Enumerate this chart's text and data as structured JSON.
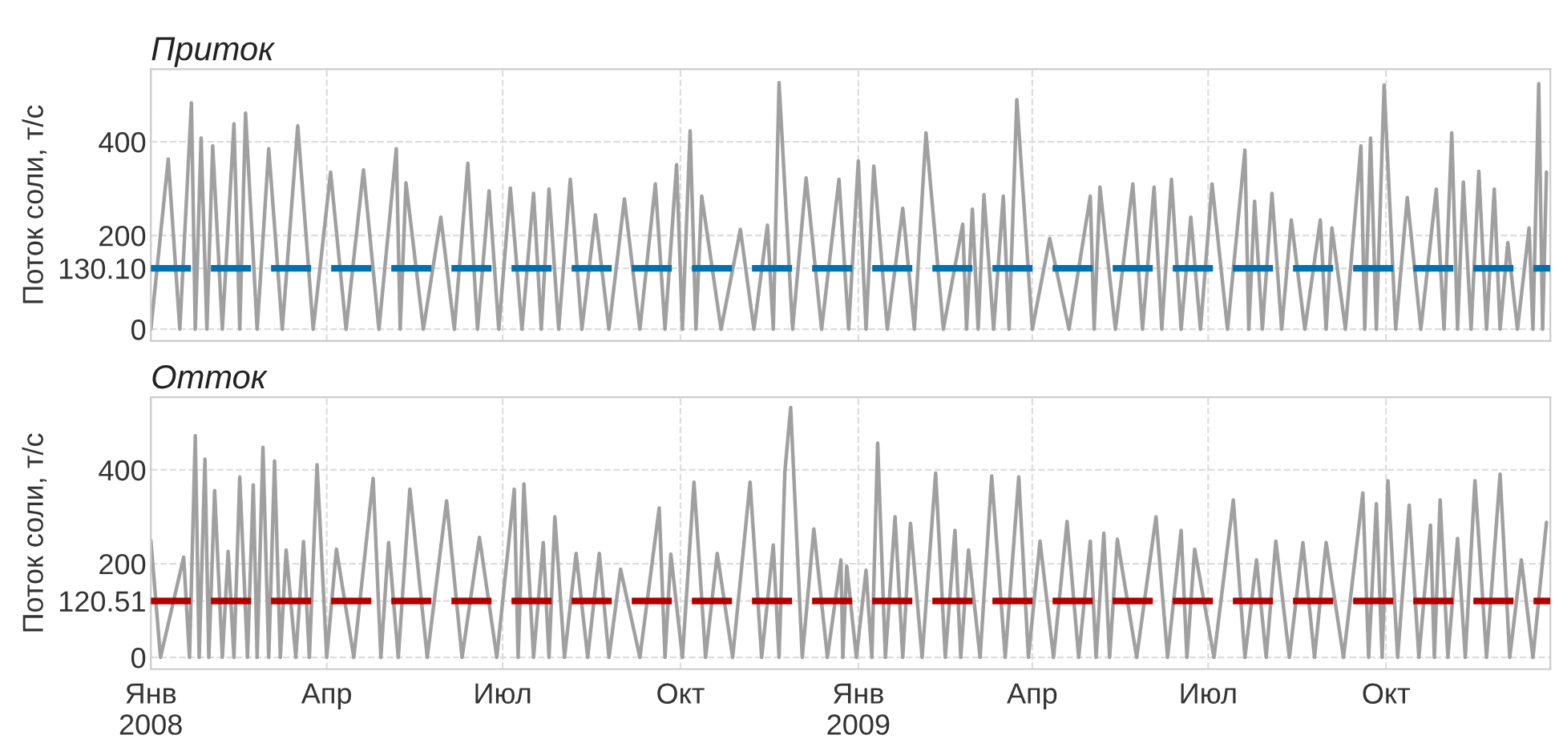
{
  "chart_data": [
    {
      "type": "line",
      "title": "Приток",
      "ylabel": "Поток соли, т/с",
      "xlim": [
        "2008-01-01",
        "2009-12-25"
      ],
      "ylim": [
        -25,
        555
      ],
      "xticks": [
        {
          "value": "2008-01-01",
          "label": null
        },
        {
          "value": "2008-04-01",
          "label": null
        },
        {
          "value": "2008-07-01",
          "label": null
        },
        {
          "value": "2008-10-01",
          "label": null
        },
        {
          "value": "2009-01-01",
          "label": null
        },
        {
          "value": "2009-04-01",
          "label": null
        },
        {
          "value": "2009-07-01",
          "label": null
        },
        {
          "value": "2009-10-01",
          "label": null
        }
      ],
      "yticks": [
        0,
        {
          "value": 130.1,
          "label": "130.10"
        },
        200,
        400
      ],
      "tick_labels": "y",
      "grid": true,
      "legend": false,
      "ref_lines": [
        {
          "axis": "y",
          "value": 130.1,
          "color": "#0072b2",
          "line_style": "dashed"
        }
      ],
      "series": [
        {
          "color": "#a0a0a0",
          "x": [
            "2008-01-01",
            "2008-01-10",
            "2008-01-16",
            "2008-01-22",
            "2008-01-24",
            "2008-01-27",
            "2008-01-30",
            "2008-02-02",
            "2008-02-07",
            "2008-02-13",
            "2008-02-16",
            "2008-02-19",
            "2008-02-25",
            "2008-03-02",
            "2008-03-09",
            "2008-03-17",
            "2008-03-25",
            "2008-04-03",
            "2008-04-11",
            "2008-04-20",
            "2008-04-28",
            "2008-05-07",
            "2008-05-09",
            "2008-05-12",
            "2008-05-21",
            "2008-05-30",
            "2008-06-06",
            "2008-06-13",
            "2008-06-18",
            "2008-06-24",
            "2008-06-29",
            "2008-07-05",
            "2008-07-11",
            "2008-07-17",
            "2008-07-21",
            "2008-07-25",
            "2008-07-30",
            "2008-08-05",
            "2008-08-11",
            "2008-08-18",
            "2008-08-25",
            "2008-09-02",
            "2008-09-10",
            "2008-09-18",
            "2008-09-23",
            "2008-09-29",
            "2008-10-02",
            "2008-10-06",
            "2008-10-09",
            "2008-10-12",
            "2008-10-22",
            "2008-11-01",
            "2008-11-08",
            "2008-11-15",
            "2008-11-18",
            "2008-11-21",
            "2008-11-28",
            "2008-12-05",
            "2008-12-13",
            "2008-12-22",
            "2008-12-27",
            "2009-01-01",
            "2009-01-05",
            "2009-01-09",
            "2009-01-16",
            "2009-01-24",
            "2009-01-30",
            "2009-02-05",
            "2009-02-14",
            "2009-02-24",
            "2009-02-26",
            "2009-03-01",
            "2009-03-04",
            "2009-03-07",
            "2009-03-12",
            "2009-03-17",
            "2009-03-20",
            "2009-03-24",
            "2009-04-01",
            "2009-04-10",
            "2009-04-20",
            "2009-05-01",
            "2009-05-03",
            "2009-05-06",
            "2009-05-14",
            "2009-05-23",
            "2009-05-28",
            "2009-06-03",
            "2009-06-07",
            "2009-06-12",
            "2009-06-17",
            "2009-06-22",
            "2009-06-27",
            "2009-07-03",
            "2009-07-11",
            "2009-07-20",
            "2009-07-22",
            "2009-07-25",
            "2009-07-29",
            "2009-08-03",
            "2009-08-08",
            "2009-08-13",
            "2009-08-20",
            "2009-08-28",
            "2009-08-31",
            "2009-09-03",
            "2009-09-10",
            "2009-09-18",
            "2009-09-20",
            "2009-09-23",
            "2009-09-26",
            "2009-09-30",
            "2009-10-06",
            "2009-10-12",
            "2009-10-19",
            "2009-10-27",
            "2009-10-31",
            "2009-11-04",
            "2009-11-07",
            "2009-11-10",
            "2009-11-14",
            "2009-11-18",
            "2009-11-22",
            "2009-11-26",
            "2009-11-29",
            "2009-12-03",
            "2009-12-08",
            "2009-12-14",
            "2009-12-16",
            "2009-12-19",
            "2009-12-21",
            "2009-12-23"
          ],
          "values": [
            0,
            363,
            0,
            483,
            0,
            408,
            0,
            391,
            0,
            438,
            0,
            461,
            0,
            385,
            0,
            434,
            0,
            335,
            0,
            340,
            0,
            385,
            0,
            312,
            0,
            239,
            0,
            354,
            0,
            295,
            0,
            301,
            0,
            290,
            0,
            299,
            0,
            320,
            0,
            244,
            0,
            278,
            0,
            310,
            0,
            351,
            0,
            423,
            0,
            284,
            0,
            213,
            0,
            222,
            0,
            526,
            0,
            323,
            0,
            320,
            0,
            359,
            0,
            348,
            0,
            258,
            0,
            419,
            0,
            224,
            0,
            256,
            0,
            287,
            0,
            284,
            0,
            490,
            0,
            194,
            0,
            284,
            0,
            303,
            0,
            310,
            0,
            303,
            0,
            320,
            0,
            239,
            0,
            310,
            0,
            382,
            0,
            273,
            0,
            290,
            0,
            233,
            0,
            233,
            0,
            216,
            0,
            391,
            0,
            408,
            0,
            521,
            0,
            281,
            0,
            299,
            0,
            419,
            0,
            314,
            0,
            337,
            0,
            299,
            0,
            185,
            0,
            216,
            0,
            524,
            0,
            335
          ]
        }
      ]
    },
    {
      "type": "line",
      "title": "Отток",
      "ylabel": "Поток соли, т/с",
      "xlim": [
        "2008-01-01",
        "2009-12-25"
      ],
      "ylim": [
        -25,
        555
      ],
      "xticks": [
        {
          "value": "2008-01-01",
          "label": "Янв\n2008"
        },
        {
          "value": "2008-04-01",
          "label": "Апр"
        },
        {
          "value": "2008-07-01",
          "label": "Июл"
        },
        {
          "value": "2008-10-01",
          "label": "Окт"
        },
        {
          "value": "2009-01-01",
          "label": "Янв\n2009"
        },
        {
          "value": "2009-04-01",
          "label": "Апр"
        },
        {
          "value": "2009-07-01",
          "label": "Июл"
        },
        {
          "value": "2009-10-01",
          "label": "Окт"
        }
      ],
      "yticks": [
        0,
        {
          "value": 120.51,
          "label": "120.51"
        },
        200,
        400
      ],
      "grid": true,
      "legend": false,
      "ref_lines": [
        {
          "axis": "y",
          "value": 120.51,
          "color": "#b00000",
          "line_style": "dashed"
        }
      ],
      "series": [
        {
          "color": "#a0a0a0",
          "x": [
            "2008-01-01",
            "2008-01-06",
            "2008-01-18",
            "2008-01-21",
            "2008-01-24",
            "2008-01-26",
            "2008-01-29",
            "2008-01-31",
            "2008-02-03",
            "2008-02-07",
            "2008-02-10",
            "2008-02-13",
            "2008-02-16",
            "2008-02-20",
            "2008-02-23",
            "2008-02-25",
            "2008-02-28",
            "2008-03-02",
            "2008-03-05",
            "2008-03-08",
            "2008-03-11",
            "2008-03-16",
            "2008-03-20",
            "2008-03-23",
            "2008-03-27",
            "2008-04-01",
            "2008-04-06",
            "2008-04-15",
            "2008-04-25",
            "2008-04-29",
            "2008-05-03",
            "2008-05-08",
            "2008-05-14",
            "2008-05-23",
            "2008-06-02",
            "2008-06-10",
            "2008-06-19",
            "2008-06-28",
            "2008-07-07",
            "2008-07-09",
            "2008-07-12",
            "2008-07-17",
            "2008-07-22",
            "2008-07-25",
            "2008-07-28",
            "2008-08-02",
            "2008-08-08",
            "2008-08-14",
            "2008-08-20",
            "2008-08-25",
            "2008-08-31",
            "2008-09-10",
            "2008-09-20",
            "2008-09-23",
            "2008-09-26",
            "2008-10-02",
            "2008-10-08",
            "2008-10-14",
            "2008-10-20",
            "2008-10-28",
            "2008-11-06",
            "2008-11-12",
            "2008-11-18",
            "2008-11-21",
            "2008-11-24",
            "2008-11-27",
            "2008-12-03",
            "2008-12-09",
            "2008-12-16",
            "2008-12-23",
            "2008-12-24",
            "2008-12-26",
            "2008-12-31",
            "2009-01-05",
            "2009-01-08",
            "2009-01-11",
            "2009-01-15",
            "2009-01-20",
            "2009-01-24",
            "2009-01-28",
            "2009-02-03",
            "2009-02-10",
            "2009-02-15",
            "2009-02-20",
            "2009-02-23",
            "2009-02-27",
            "2009-03-05",
            "2009-03-11",
            "2009-03-18",
            "2009-03-25",
            "2009-03-30",
            "2009-04-05",
            "2009-04-12",
            "2009-04-19",
            "2009-04-25",
            "2009-05-01",
            "2009-05-04",
            "2009-05-08",
            "2009-05-11",
            "2009-05-15",
            "2009-05-25",
            "2009-06-04",
            "2009-06-10",
            "2009-06-17",
            "2009-06-20",
            "2009-06-24",
            "2009-07-04",
            "2009-07-14",
            "2009-07-20",
            "2009-07-26",
            "2009-07-31",
            "2009-08-05",
            "2009-08-12",
            "2009-08-19",
            "2009-08-25",
            "2009-08-31",
            "2009-09-09",
            "2009-09-19",
            "2009-09-22",
            "2009-09-26",
            "2009-09-29",
            "2009-10-02",
            "2009-10-07",
            "2009-10-13",
            "2009-10-18",
            "2009-10-24",
            "2009-10-26",
            "2009-10-29",
            "2009-11-02",
            "2009-11-07",
            "2009-11-11",
            "2009-11-16",
            "2009-11-22",
            "2009-11-29",
            "2009-12-04",
            "2009-12-10",
            "2009-12-16",
            "2009-12-23"
          ],
          "values": [
            250,
            0,
            214,
            0,
            473,
            0,
            423,
            0,
            356,
            0,
            226,
            0,
            385,
            0,
            368,
            0,
            448,
            0,
            419,
            0,
            229,
            0,
            247,
            0,
            411,
            0,
            231,
            0,
            382,
            0,
            245,
            0,
            359,
            0,
            334,
            0,
            256,
            0,
            359,
            0,
            370,
            0,
            245,
            0,
            300,
            0,
            222,
            0,
            222,
            0,
            188,
            0,
            319,
            0,
            220,
            0,
            374,
            0,
            222,
            0,
            374,
            0,
            240,
            0,
            396,
            533,
            0,
            274,
            0,
            208,
            0,
            195,
            0,
            186,
            0,
            457,
            0,
            300,
            0,
            286,
            0,
            393,
            0,
            271,
            0,
            229,
            0,
            387,
            0,
            385,
            0,
            248,
            0,
            290,
            0,
            248,
            0,
            265,
            0,
            252,
            0,
            300,
            0,
            271,
            0,
            231,
            0,
            336,
            0,
            208,
            0,
            248,
            0,
            245,
            0,
            245,
            0,
            351,
            0,
            328,
            0,
            377,
            0,
            325,
            0,
            282,
            0,
            336,
            0,
            254,
            0,
            377,
            0,
            391,
            0,
            208,
            0,
            288
          ]
        }
      ]
    }
  ]
}
